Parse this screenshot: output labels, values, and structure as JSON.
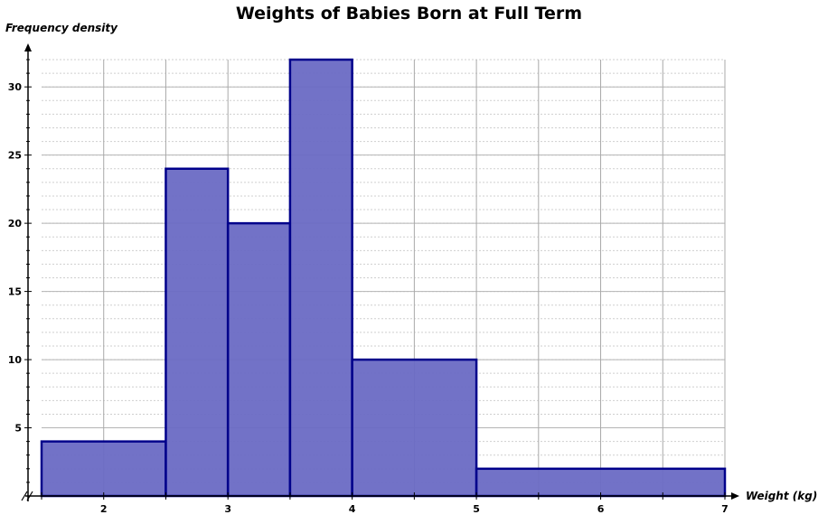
{
  "chart_data": {
    "type": "bar",
    "title": "Weights of Babies Born at Full Term",
    "xlabel": "Weight (kg)",
    "ylabel": "Frequency density",
    "xlim": [
      1.5,
      7
    ],
    "ylim": [
      0,
      32
    ],
    "x_ticks": [
      2,
      3,
      4,
      5,
      6,
      7
    ],
    "y_ticks": [
      5,
      10,
      15,
      20,
      25,
      30
    ],
    "grid": true,
    "bins": [
      {
        "from": 1.5,
        "to": 2.5,
        "value": 4
      },
      {
        "from": 2.5,
        "to": 3.0,
        "value": 24
      },
      {
        "from": 3.0,
        "to": 3.5,
        "value": 20
      },
      {
        "from": 3.5,
        "to": 4.0,
        "value": 32
      },
      {
        "from": 4.0,
        "to": 5.0,
        "value": 10
      },
      {
        "from": 5.0,
        "to": 7.0,
        "value": 2
      }
    ],
    "bar_fill": "#6a6ac4",
    "bar_edge": "#00008b"
  }
}
